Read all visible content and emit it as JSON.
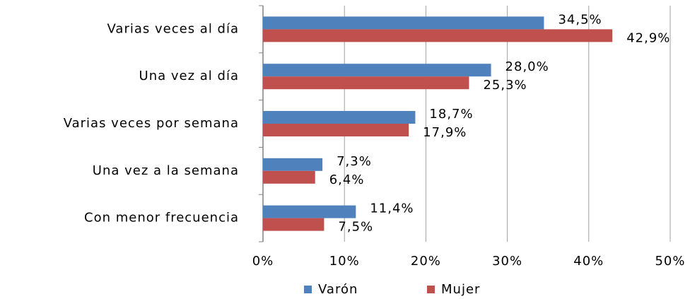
{
  "chart_data": {
    "type": "bar",
    "orientation": "horizontal",
    "categories": [
      "Varias veces al día",
      "Una vez al día",
      "Varias veces por semana",
      "Una vez a la semana",
      "Con menor frecuencia"
    ],
    "series": [
      {
        "name": "Varón",
        "color": "#4f81bd",
        "values": [
          34.5,
          28.0,
          18.7,
          7.3,
          11.4
        ],
        "value_labels": [
          "34,5%",
          "28,0%",
          "18,7%",
          "7,3%",
          "11,4%"
        ]
      },
      {
        "name": "Mujer",
        "color": "#c0504d",
        "values": [
          42.9,
          25.3,
          17.9,
          6.4,
          7.5
        ],
        "value_labels": [
          "42,9%",
          "25,3%",
          "17,9%",
          "6,4%",
          "7,5%"
        ]
      }
    ],
    "xlim": [
      0,
      50
    ],
    "xticks": [
      {
        "value": 0,
        "label": "0%"
      },
      {
        "value": 10,
        "label": "10%"
      },
      {
        "value": 20,
        "label": "20%"
      },
      {
        "value": 30,
        "label": "30%"
      },
      {
        "value": 40,
        "label": "40%"
      },
      {
        "value": 50,
        "label": "50%"
      }
    ],
    "grid": true,
    "legend": "bottom"
  }
}
